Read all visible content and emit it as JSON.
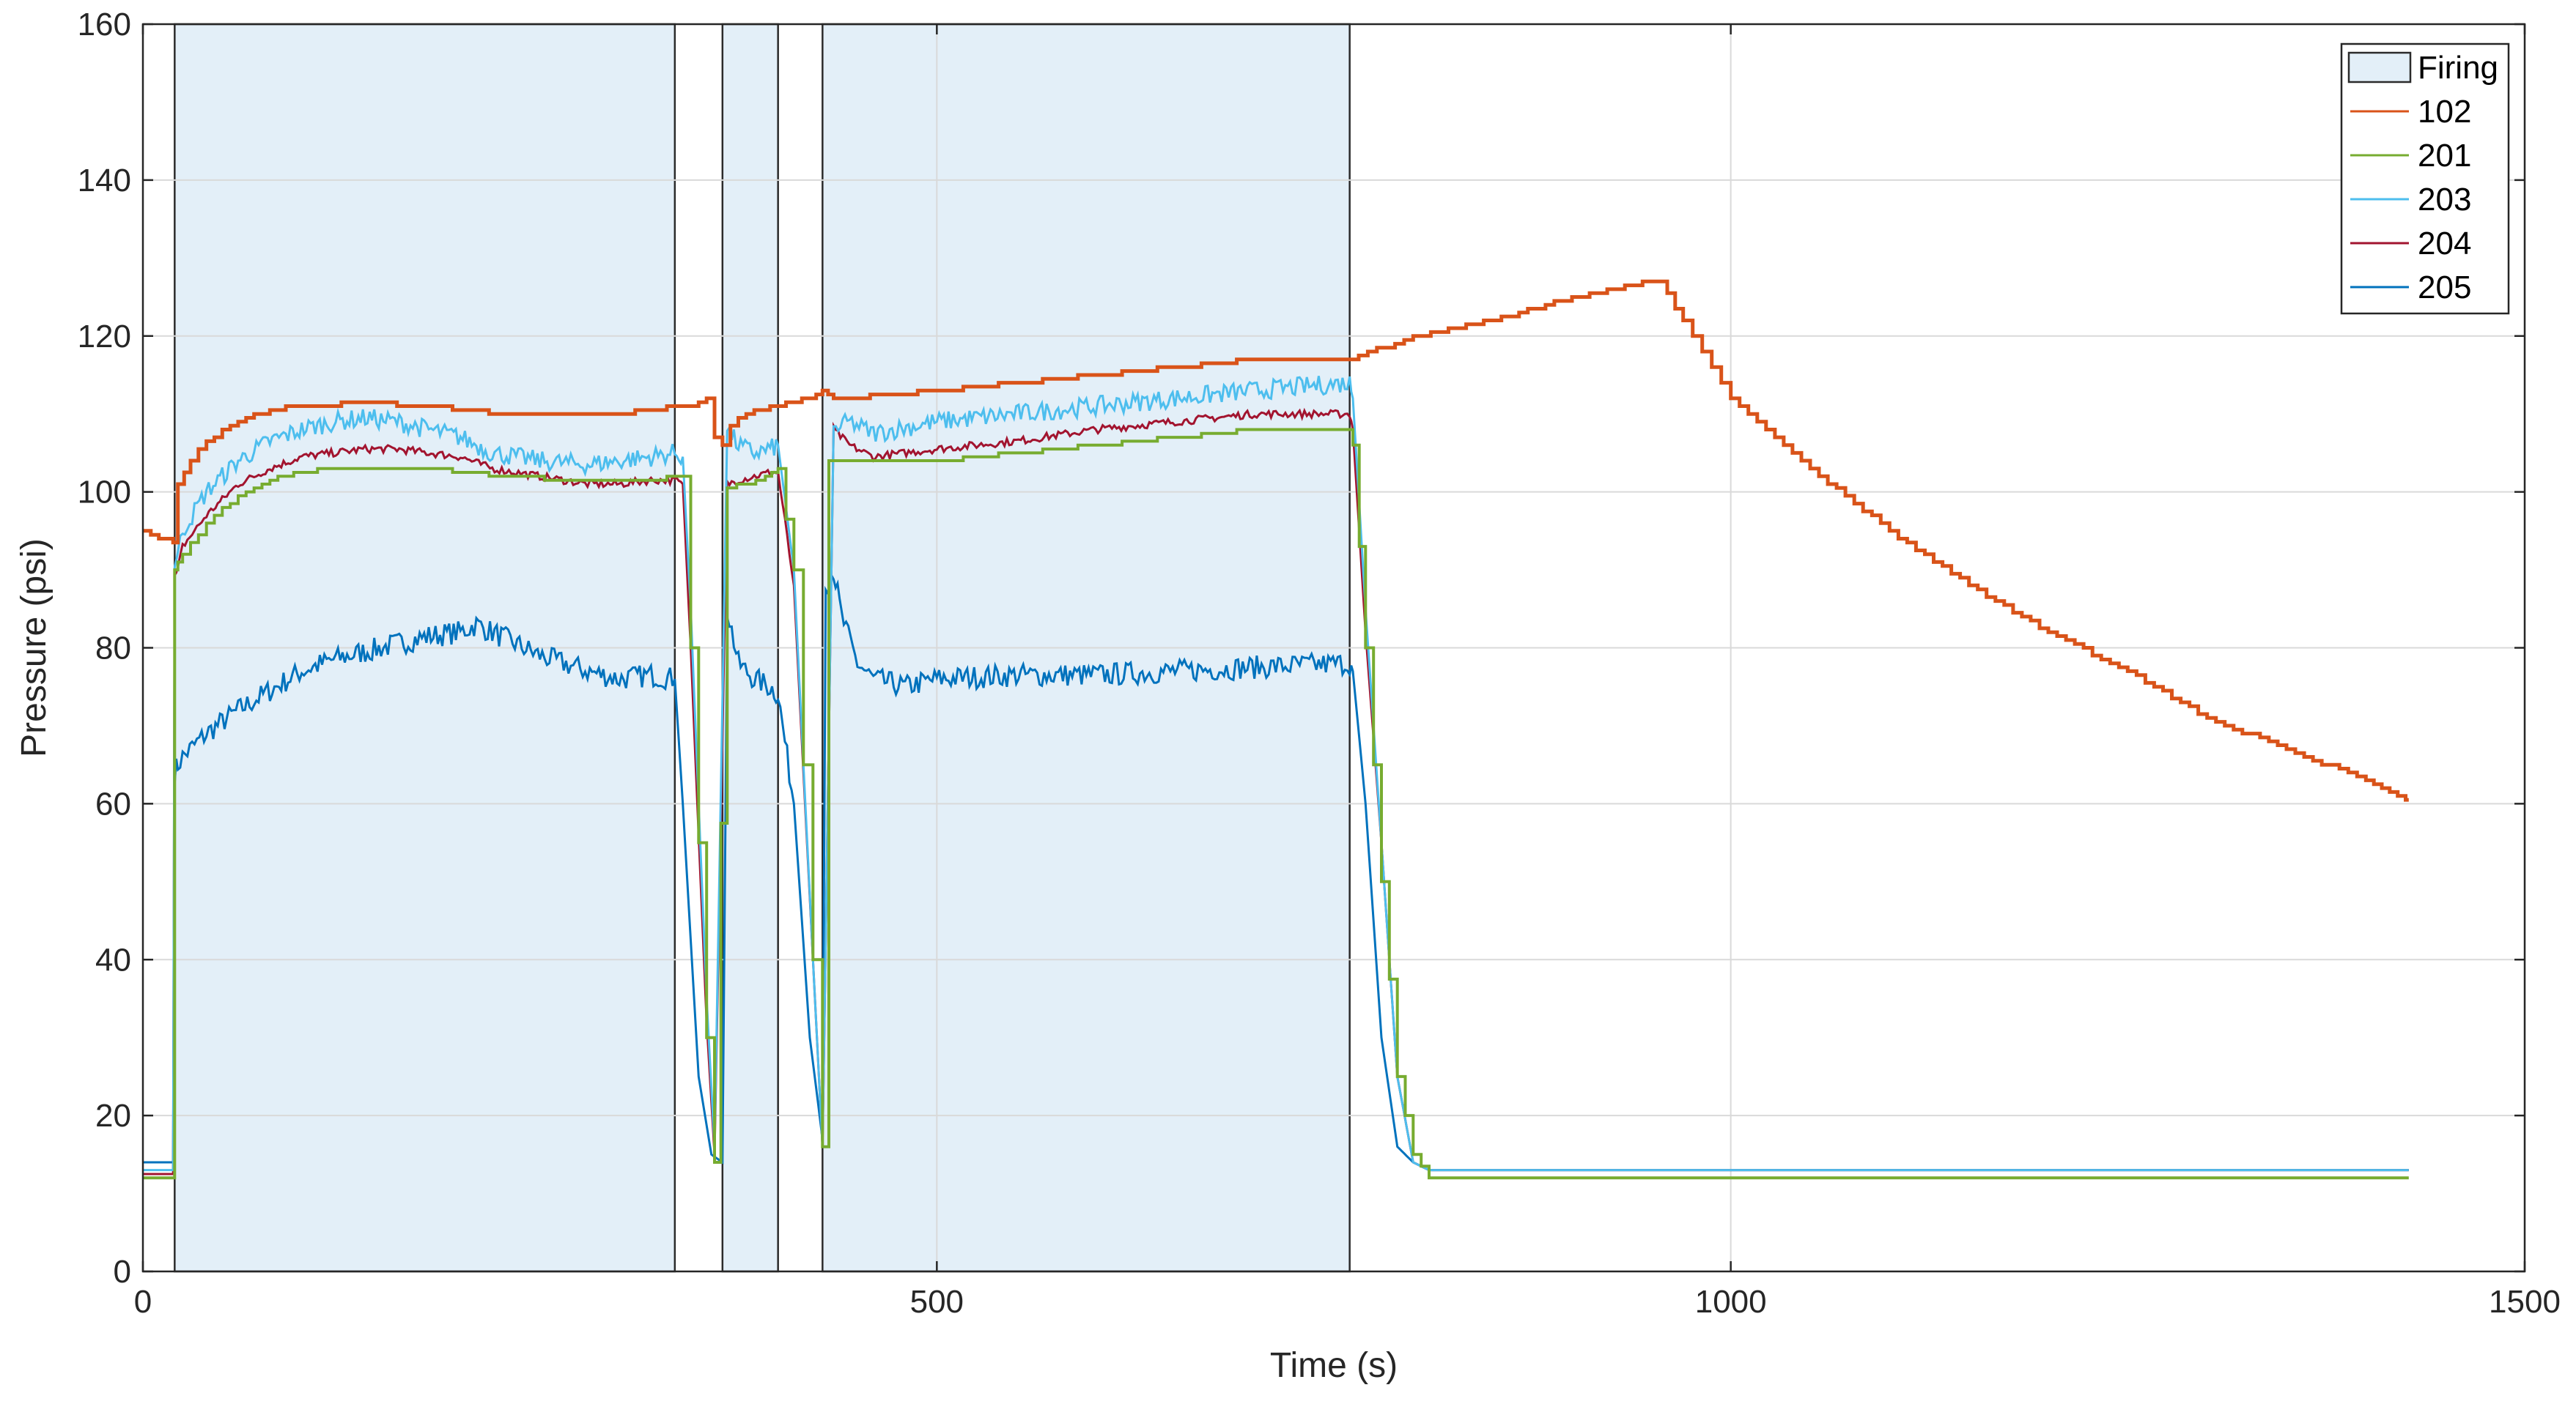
{
  "chart_data": {
    "type": "line",
    "title": "",
    "xlabel": "Time (s)",
    "ylabel": "Pressure (psi)",
    "xlim": [
      0,
      1500
    ],
    "ylim": [
      0,
      160
    ],
    "grid": true,
    "legend_position": "top-right",
    "xticks": [
      {
        "value": 0,
        "label": "0"
      },
      {
        "value": 500,
        "label": "500"
      },
      {
        "value": 1000,
        "label": "1000"
      },
      {
        "value": 1500,
        "label": "1500"
      }
    ],
    "yticks": [
      {
        "value": 0,
        "label": "0"
      },
      {
        "value": 20,
        "label": "20"
      },
      {
        "value": 40,
        "label": "40"
      },
      {
        "value": 60,
        "label": "60"
      },
      {
        "value": 80,
        "label": "80"
      },
      {
        "value": 100,
        "label": "100"
      },
      {
        "value": 120,
        "label": "120"
      },
      {
        "value": 140,
        "label": "140"
      },
      {
        "value": 160,
        "label": "160"
      }
    ],
    "firing": {
      "name": "Firing",
      "color": "#e3eff8",
      "edge_color": "#2b2b2b",
      "intervals": [
        [
          20,
          335
        ],
        [
          365,
          400
        ],
        [
          428,
          760
        ]
      ]
    },
    "series": [
      {
        "name": "102",
        "color": "#d95319",
        "width": 5,
        "step": true,
        "x": [
          0,
          5,
          10,
          15,
          19,
          22,
          30,
          40,
          60,
          80,
          100,
          120,
          140,
          150,
          160,
          180,
          200,
          230,
          270,
          300,
          320,
          335,
          345,
          350,
          355,
          360,
          365,
          370,
          380,
          400,
          420,
          428,
          435,
          440,
          500,
          550,
          600,
          650,
          700,
          760,
          800,
          850,
          900,
          950,
          955,
          970,
          1000,
          1050,
          1100,
          1150,
          1200,
          1250,
          1300,
          1350,
          1400,
          1420,
          1425,
          1427
        ],
        "y": [
          95,
          94.6,
          94.2,
          93.8,
          93.5,
          101,
          104,
          106.5,
          109,
          110.5,
          111,
          111.2,
          111.4,
          111.6,
          111,
          111,
          110.5,
          110,
          110,
          110,
          110.5,
          111,
          111,
          111.5,
          112,
          107,
          106,
          108.5,
          110,
          111,
          112,
          113,
          112,
          112,
          113,
          114,
          115,
          116,
          117,
          117,
          120,
          122,
          125,
          127,
          127,
          122,
          112,
          103,
          95,
          88,
          82,
          77,
          71,
          67,
          63,
          61,
          60.5,
          60
        ]
      },
      {
        "name": "201",
        "color": "#77ac30",
        "width": 4,
        "step": true,
        "x": [
          0,
          19,
          20,
          22,
          25,
          40,
          60,
          80,
          100,
          120,
          140,
          180,
          200,
          230,
          270,
          300,
          320,
          335,
          340,
          345,
          355,
          360,
          368,
          380,
          392,
          400,
          410,
          422,
          428,
          432,
          500,
          550,
          600,
          650,
          700,
          760,
          762,
          770,
          780,
          790,
          800,
          810,
          1400,
          1427
        ],
        "y": [
          12,
          12,
          90,
          91,
          92,
          96,
          99.5,
          101.5,
          102.5,
          103,
          103,
          103,
          102.5,
          102,
          101.5,
          101.5,
          101.5,
          102,
          102,
          80,
          30,
          14,
          100.5,
          101,
          102,
          103,
          90,
          40,
          16,
          104,
          104,
          105,
          106,
          107,
          108,
          108,
          106,
          80,
          50,
          25,
          15,
          12,
          12,
          12
        ]
      },
      {
        "name": "203",
        "color": "#4dbeee",
        "width": 3,
        "step": false,
        "noise": 2.5,
        "x": [
          0,
          19,
          20,
          22,
          25,
          40,
          60,
          80,
          100,
          120,
          140,
          160,
          180,
          200,
          220,
          250,
          280,
          300,
          320,
          335,
          340,
          345,
          355,
          360,
          368,
          375,
          385,
          395,
          400,
          410,
          422,
          428,
          435,
          445,
          460,
          500,
          550,
          600,
          650,
          700,
          760,
          762,
          770,
          780,
          790,
          800,
          810,
          1400,
          1427
        ],
        "y": [
          13,
          13,
          91,
          92,
          95,
          100,
          104,
          106.5,
          108,
          109,
          109.5,
          109,
          108,
          107,
          105,
          104,
          103.5,
          104,
          104.5,
          105,
          104.5,
          85,
          35,
          16,
          108,
          106,
          105,
          105.5,
          106,
          90,
          40,
          16,
          108,
          109,
          107.5,
          109,
          110,
          111,
          112,
          113,
          114,
          112,
          85,
          55,
          25,
          14,
          13,
          13,
          13
        ]
      },
      {
        "name": "204",
        "color": "#a2142f",
        "width": 3,
        "step": false,
        "noise": 1.0,
        "x": [
          0,
          19,
          20,
          22,
          25,
          40,
          60,
          80,
          100,
          120,
          140,
          160,
          180,
          200,
          220,
          250,
          280,
          300,
          320,
          335,
          340,
          345,
          355,
          360,
          368,
          375,
          385,
          395,
          400,
          410,
          422,
          428,
          435,
          445,
          460,
          500,
          550,
          600,
          650,
          700,
          760,
          762,
          770,
          780,
          790,
          800,
          810,
          1400,
          1427
        ],
        "y": [
          12.5,
          12.5,
          89,
          90,
          93,
          97,
          101,
          103,
          104.5,
          105,
          105.5,
          105.5,
          105,
          104.5,
          103,
          102,
          101,
          101,
          101.5,
          101.5,
          101,
          80,
          32,
          15,
          101,
          101.5,
          102,
          102.5,
          102.5,
          88,
          40,
          16,
          108,
          106,
          104.5,
          105.5,
          106.5,
          108,
          109,
          110,
          110,
          108,
          82,
          55,
          25,
          14,
          13,
          13,
          13
        ]
      },
      {
        "name": "205",
        "color": "#0072bd",
        "width": 3,
        "step": false,
        "noise": 3.0,
        "x": [
          0,
          19,
          20,
          22,
          25,
          40,
          60,
          80,
          100,
          120,
          140,
          160,
          180,
          200,
          210,
          220,
          230,
          250,
          280,
          300,
          320,
          335,
          340,
          350,
          358,
          365,
          368,
          375,
          385,
          395,
          400,
          410,
          420,
          428,
          430,
          435,
          440,
          450,
          460,
          480,
          500,
          550,
          600,
          650,
          700,
          760,
          762,
          770,
          780,
          790,
          800,
          810,
          1400,
          1427
        ],
        "y": [
          14,
          14,
          64,
          65,
          66,
          69,
          72,
          74.5,
          77,
          78.5,
          79.5,
          80.5,
          81.5,
          82,
          83,
          82,
          81,
          79,
          77,
          76,
          76.5,
          76,
          60,
          25,
          15,
          14,
          85,
          78,
          76,
          75,
          74,
          60,
          30,
          17,
          88,
          90,
          84,
          78,
          76,
          75,
          76,
          76.5,
          76.5,
          77,
          77.5,
          78,
          77,
          60,
          30,
          16,
          14,
          13,
          13,
          13
        ]
      }
    ]
  }
}
